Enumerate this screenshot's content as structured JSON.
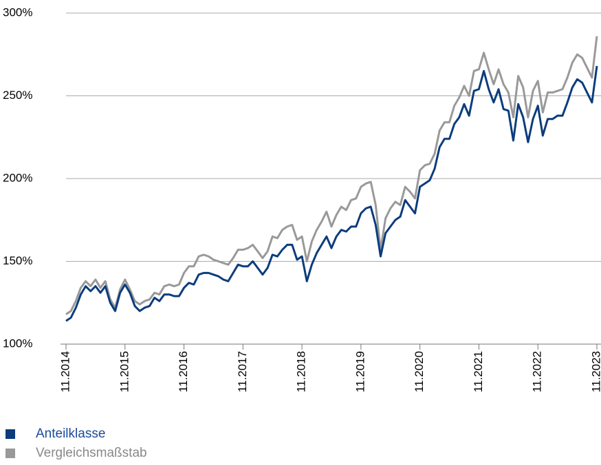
{
  "chart_data": {
    "type": "line",
    "categories": [
      "11.2014",
      null,
      null,
      null,
      null,
      null,
      null,
      null,
      null,
      null,
      null,
      null,
      "11.2015",
      null,
      null,
      null,
      null,
      null,
      null,
      null,
      null,
      null,
      null,
      null,
      "11.2016",
      null,
      null,
      null,
      null,
      null,
      null,
      null,
      null,
      null,
      null,
      null,
      "11.2017",
      null,
      null,
      null,
      null,
      null,
      null,
      null,
      null,
      null,
      null,
      null,
      "11.2018",
      null,
      null,
      null,
      null,
      null,
      null,
      null,
      null,
      null,
      null,
      null,
      "11.2019",
      null,
      null,
      null,
      null,
      null,
      null,
      null,
      null,
      null,
      null,
      null,
      "11.2020",
      null,
      null,
      null,
      null,
      null,
      null,
      null,
      null,
      null,
      null,
      null,
      "11.2021",
      null,
      null,
      null,
      null,
      null,
      null,
      null,
      null,
      null,
      null,
      null,
      "11.2022",
      null,
      null,
      null,
      null,
      null,
      null,
      null,
      null,
      null,
      null,
      null,
      "11.2023"
    ],
    "series": [
      {
        "name": "Anteilklasse",
        "color": "#0b3c7d",
        "values": [
          114,
          116,
          122,
          130,
          135,
          132,
          135,
          131,
          135,
          125,
          120,
          131,
          136,
          131,
          123,
          120,
          122,
          123,
          128,
          126,
          130,
          130,
          129,
          129,
          134,
          137,
          136,
          142,
          143,
          143,
          142,
          141,
          139,
          138,
          143,
          148,
          147,
          147,
          150,
          146,
          142,
          146,
          154,
          153,
          157,
          160,
          160,
          151,
          153,
          138,
          148,
          155,
          160,
          165,
          158,
          165,
          169,
          168,
          171,
          171,
          179,
          182,
          183,
          172,
          153,
          167,
          171,
          175,
          177,
          187,
          183,
          179,
          195,
          197,
          199,
          206,
          219,
          224,
          224,
          233,
          237,
          245,
          238,
          253,
          254,
          265,
          254,
          246,
          254,
          242,
          241,
          223,
          245,
          237,
          222,
          236,
          244,
          226,
          236,
          236,
          238,
          238,
          246,
          255,
          260,
          258,
          252,
          246,
          268
        ]
      },
      {
        "name": "Vergleichsmaßstab",
        "color": "#999999",
        "values": [
          118,
          120,
          126,
          134,
          138,
          135,
          139,
          134,
          138,
          127,
          122,
          133,
          139,
          133,
          126,
          124,
          126,
          127,
          131,
          130,
          135,
          136,
          135,
          136,
          143,
          147,
          147,
          153,
          154,
          153,
          151,
          150,
          149,
          148,
          152,
          157,
          157,
          158,
          160,
          156,
          152,
          156,
          165,
          164,
          169,
          171,
          172,
          163,
          165,
          150,
          162,
          169,
          174,
          180,
          171,
          178,
          183,
          181,
          187,
          188,
          195,
          197,
          198,
          184,
          157,
          176,
          182,
          186,
          184,
          195,
          192,
          188,
          205,
          208,
          209,
          215,
          229,
          234,
          234,
          244,
          249,
          256,
          250,
          265,
          266,
          276,
          266,
          257,
          266,
          257,
          252,
          237,
          262,
          255,
          237,
          253,
          259,
          240,
          252,
          252,
          253,
          254,
          261,
          270,
          275,
          273,
          267,
          261,
          286
        ]
      }
    ],
    "ylim": [
      100,
      300
    ],
    "yticks": [
      {
        "value": 100,
        "label": "100%"
      },
      {
        "value": 150,
        "label": "150%"
      },
      {
        "value": 200,
        "label": "200%"
      },
      {
        "value": 250,
        "label": "250%"
      },
      {
        "value": 300,
        "label": "300%"
      }
    ],
    "grid": true
  }
}
